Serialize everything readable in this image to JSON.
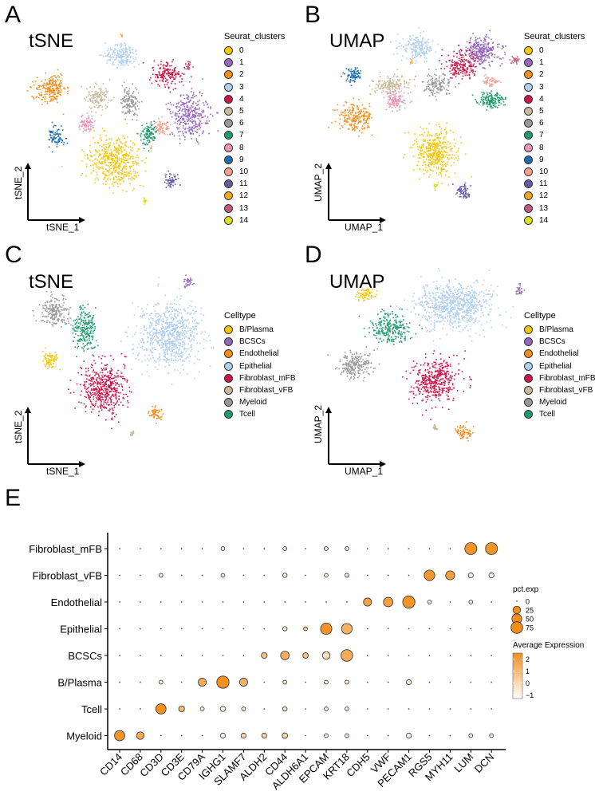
{
  "panels": {
    "A": {
      "letter": "A",
      "title": "tSNE",
      "xlabel": "tSNE_1",
      "ylabel": "tSNE_2"
    },
    "B": {
      "letter": "B",
      "title": "UMAP",
      "xlabel": "UMAP_1",
      "ylabel": "UMAP_2"
    },
    "C": {
      "letter": "C",
      "title": "tSNE",
      "xlabel": "tSNE_1",
      "ylabel": "tSNE_2"
    },
    "D": {
      "letter": "D",
      "title": "UMAP",
      "xlabel": "UMAP_1",
      "ylabel": "UMAP_2"
    },
    "E": {
      "letter": "E"
    }
  },
  "cluster_legend": {
    "title": "Seurat_clusters",
    "items": [
      {
        "label": "0",
        "color": "#F2C80F"
      },
      {
        "label": "1",
        "color": "#9467BD"
      },
      {
        "label": "2",
        "color": "#F28E1C"
      },
      {
        "label": "3",
        "color": "#AFCFEF"
      },
      {
        "label": "4",
        "color": "#C9184A"
      },
      {
        "label": "5",
        "color": "#C8B99A"
      },
      {
        "label": "6",
        "color": "#999999"
      },
      {
        "label": "7",
        "color": "#1E9A6E"
      },
      {
        "label": "8",
        "color": "#E895B8"
      },
      {
        "label": "9",
        "color": "#1F6FB0"
      },
      {
        "label": "10",
        "color": "#F4A18E"
      },
      {
        "label": "11",
        "color": "#6A5AA6"
      },
      {
        "label": "12",
        "color": "#F5A623"
      },
      {
        "label": "13",
        "color": "#C05A80"
      },
      {
        "label": "14",
        "color": "#DDE022"
      }
    ]
  },
  "celltype_legend": {
    "title": "Celltype",
    "items": [
      {
        "label": "B/Plasma",
        "color": "#F2C80F"
      },
      {
        "label": "BCSCs",
        "color": "#9467BD"
      },
      {
        "label": "Endothelial",
        "color": "#F28E1C"
      },
      {
        "label": "Epithelial",
        "color": "#AFCFEF"
      },
      {
        "label": "Fibroblast_mFB",
        "color": "#C9184A"
      },
      {
        "label": "Fibroblast_vFB",
        "color": "#C8B99A"
      },
      {
        "label": "Myeloid",
        "color": "#999999"
      },
      {
        "label": "Tcell",
        "color": "#1E9A6E"
      }
    ]
  },
  "chart_data": [
    {
      "type": "scatter",
      "panel": "A",
      "title": "tSNE",
      "xlabel": "tSNE_1",
      "ylabel": "tSNE_2",
      "legend": "Seurat_clusters",
      "legend_position": "right",
      "clusters": [
        {
          "id": "0",
          "center": [
            0.46,
            0.68
          ],
          "spread": [
            0.14,
            0.14
          ]
        },
        {
          "id": "1",
          "center": [
            0.86,
            0.43
          ],
          "spread": [
            0.1,
            0.13
          ]
        },
        {
          "id": "2",
          "center": [
            0.1,
            0.28
          ],
          "spread": [
            0.08,
            0.08
          ]
        },
        {
          "id": "3",
          "center": [
            0.5,
            0.12
          ],
          "spread": [
            0.09,
            0.06
          ]
        },
        {
          "id": "4",
          "center": [
            0.73,
            0.22
          ],
          "spread": [
            0.08,
            0.07
          ]
        },
        {
          "id": "5",
          "center": [
            0.36,
            0.34
          ],
          "spread": [
            0.06,
            0.07
          ]
        },
        {
          "id": "6",
          "center": [
            0.53,
            0.36
          ],
          "spread": [
            0.05,
            0.08
          ]
        },
        {
          "id": "7",
          "center": [
            0.63,
            0.55
          ],
          "spread": [
            0.04,
            0.06
          ]
        },
        {
          "id": "8",
          "center": [
            0.3,
            0.48
          ],
          "spread": [
            0.04,
            0.05
          ]
        },
        {
          "id": "9",
          "center": [
            0.13,
            0.55
          ],
          "spread": [
            0.04,
            0.06
          ]
        },
        {
          "id": "10",
          "center": [
            0.71,
            0.51
          ],
          "spread": [
            0.04,
            0.04
          ]
        },
        {
          "id": "11",
          "center": [
            0.78,
            0.8
          ],
          "spread": [
            0.04,
            0.04
          ]
        },
        {
          "id": "12",
          "center": [
            0.52,
            0.02
          ],
          "spread": [
            0.01,
            0.01
          ]
        },
        {
          "id": "13",
          "center": [
            0.85,
            0.17
          ],
          "spread": [
            0.02,
            0.03
          ]
        },
        {
          "id": "14",
          "center": [
            0.66,
            0.92
          ],
          "spread": [
            0.015,
            0.015
          ]
        }
      ]
    },
    {
      "type": "scatter",
      "panel": "B",
      "title": "UMAP",
      "xlabel": "UMAP_1",
      "ylabel": "UMAP_2",
      "legend": "Seurat_clusters",
      "legend_position": "right"
    },
    {
      "type": "scatter",
      "panel": "C",
      "title": "tSNE",
      "xlabel": "tSNE_1",
      "ylabel": "tSNE_2",
      "legend": "Celltype",
      "legend_position": "right"
    },
    {
      "type": "scatter",
      "panel": "D",
      "title": "UMAP",
      "xlabel": "UMAP_1",
      "ylabel": "UMAP_2",
      "legend": "Celltype",
      "legend_position": "right"
    },
    {
      "type": "dotplot",
      "panel": "E",
      "genes": [
        "CD14",
        "CD68",
        "CD3D",
        "CD3E",
        "CD79A",
        "IGHG1",
        "SLAMF7",
        "ALDH2",
        "CD44",
        "ALDH6A1",
        "EPCAM",
        "KRT18",
        "CDH5",
        "VWF",
        "PECAM1",
        "RGS5",
        "MYH11",
        "LUM",
        "DCN"
      ],
      "celltypes": [
        "Fibroblast_mFB",
        "Fibroblast_vFB",
        "Endothelial",
        "Epithelial",
        "BCSCs",
        "B/Plasma",
        "Tcell",
        "Myeloid"
      ],
      "pct_exp": [
        [
          1,
          1,
          1,
          1,
          1,
          3,
          1,
          1,
          3,
          1,
          3,
          3,
          1,
          1,
          1,
          1,
          1,
          80,
          80
        ],
        [
          1,
          1,
          3,
          1,
          1,
          3,
          1,
          1,
          5,
          1,
          3,
          3,
          1,
          1,
          1,
          60,
          40,
          8,
          8
        ],
        [
          1,
          1,
          1,
          1,
          1,
          1,
          1,
          1,
          1,
          1,
          1,
          1,
          30,
          45,
          85,
          3,
          1,
          3,
          1
        ],
        [
          1,
          1,
          1,
          1,
          1,
          1,
          1,
          1,
          5,
          3,
          70,
          60,
          1,
          1,
          1,
          1,
          1,
          1,
          1
        ],
        [
          1,
          1,
          1,
          1,
          1,
          1,
          1,
          12,
          35,
          10,
          25,
          75,
          1,
          1,
          1,
          1,
          1,
          1,
          1
        ],
        [
          1,
          1,
          3,
          1,
          30,
          85,
          30,
          1,
          3,
          1,
          3,
          3,
          1,
          1,
          8,
          1,
          1,
          1,
          1
        ],
        [
          1,
          1,
          55,
          12,
          3,
          8,
          3,
          1,
          5,
          1,
          3,
          3,
          1,
          1,
          1,
          1,
          1,
          1,
          1
        ],
        [
          55,
          25,
          1,
          1,
          1,
          8,
          8,
          8,
          10,
          1,
          3,
          3,
          1,
          1,
          8,
          1,
          1,
          3,
          3
        ]
      ],
      "avg_exp": [
        [
          -0.5,
          -0.5,
          -0.5,
          -0.5,
          -0.5,
          -0.5,
          -0.5,
          -0.5,
          -0.5,
          -0.5,
          -0.5,
          -0.5,
          -0.5,
          -0.5,
          -0.5,
          -0.5,
          -0.5,
          2.3,
          2.3
        ],
        [
          -0.5,
          -0.5,
          -0.5,
          -0.5,
          -0.5,
          -0.5,
          -0.5,
          -0.5,
          -0.5,
          -0.5,
          -0.5,
          -0.5,
          -0.5,
          -0.5,
          -0.5,
          2.2,
          2.0,
          -0.8,
          -0.8
        ],
        [
          -0.5,
          -0.5,
          -0.5,
          -0.5,
          -0.5,
          -0.5,
          -0.5,
          -0.5,
          -0.5,
          -0.5,
          -0.5,
          -0.5,
          1.8,
          1.9,
          2.3,
          -0.5,
          -0.5,
          -0.5,
          -0.5
        ],
        [
          -0.5,
          -0.5,
          -0.5,
          -0.5,
          -0.5,
          -0.5,
          -0.5,
          -0.5,
          -0.5,
          0.5,
          2.3,
          1.3,
          -0.5,
          -0.5,
          -0.5,
          -0.5,
          -0.5,
          -0.5,
          -0.5
        ],
        [
          -0.5,
          -0.5,
          -0.5,
          -0.5,
          -0.5,
          -0.5,
          -0.5,
          0.8,
          1.4,
          0.8,
          -0.2,
          1.5,
          -0.5,
          -0.5,
          -0.5,
          -0.5,
          -0.5,
          -0.5,
          -0.5
        ],
        [
          -0.5,
          -0.5,
          -0.5,
          -0.5,
          1.5,
          2.4,
          1.3,
          -0.5,
          -0.5,
          -0.5,
          -0.5,
          -0.5,
          -0.5,
          -0.5,
          -0.8,
          -0.5,
          -0.5,
          -0.5,
          -0.5
        ],
        [
          -0.5,
          -0.5,
          2.4,
          1.0,
          -0.5,
          -0.9,
          -0.5,
          -0.5,
          -0.5,
          -0.5,
          -0.5,
          -0.5,
          -0.5,
          -0.5,
          -0.5,
          -0.5,
          -0.5,
          -0.5,
          -0.5
        ],
        [
          2.3,
          1.6,
          -0.5,
          -0.5,
          -0.5,
          -0.8,
          0.3,
          0.3,
          0.2,
          -0.5,
          -0.5,
          -0.5,
          -0.5,
          -0.5,
          -0.8,
          -0.5,
          -0.5,
          -0.5,
          -0.5
        ]
      ],
      "size_legend": {
        "title": "pct.exp",
        "values": [
          0,
          25,
          50,
          75
        ]
      },
      "color_legend": {
        "title": "Average Expression",
        "ticks": [
          2,
          1,
          0,
          -1
        ],
        "range": [
          -1.3,
          2.5
        ],
        "low_color": "#FFFFFF",
        "high_color": "#F28E1C"
      }
    }
  ]
}
